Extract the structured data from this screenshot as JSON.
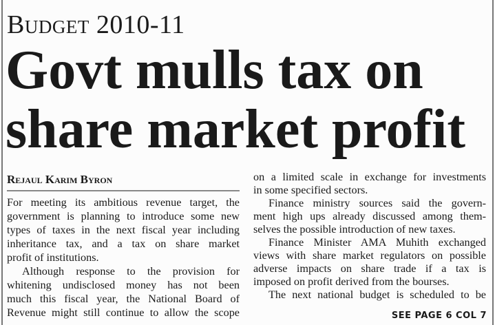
{
  "kicker": "Budget 2010-11",
  "headline": [
    "Govt mulls tax on",
    "share market profit"
  ],
  "byline": "Rejaul Karim Byron",
  "left_column": [
    [
      "For meeting its ambitious revenue target, the",
      "government is planning to introduce some new",
      "types of taxes in the next fiscal year including",
      "inheritance tax, and a tax on share market",
      "profit of institutions."
    ],
    [
      "Although response to the provision for",
      "whitening undisclosed money has not been",
      "much this fiscal year, the National Board of",
      "Revenue might still continue to allow the scope"
    ]
  ],
  "right_column": [
    [
      "on a limited scale in exchange for investments",
      "in some specified sectors."
    ],
    [
      "Finance ministry sources said the govern-",
      "ment high ups already discussed among them-",
      "selves the possible introduction of new taxes."
    ],
    [
      "Finance Minister AMA Muhith exchanged",
      "views with share market regulators on possible",
      "adverse impacts on share trade if a tax is",
      "imposed on profit derived from the bourses."
    ],
    [
      "The next national budget is scheduled to be"
    ]
  ],
  "continuation": "SEE PAGE 6 COL 7"
}
